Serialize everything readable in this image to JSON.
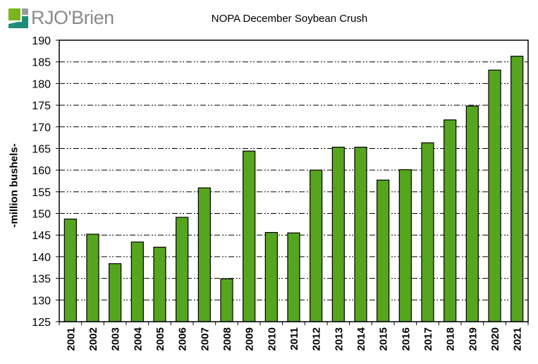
{
  "logo": {
    "text": "RJO'Brien"
  },
  "chart_data": {
    "type": "bar",
    "title": "NOPA December Soybean Crush",
    "xlabel": "",
    "ylabel": "-million bushels-",
    "ylim": [
      125,
      190
    ],
    "ytick_step": 5,
    "yticks": [
      125,
      130,
      135,
      140,
      145,
      150,
      155,
      160,
      165,
      170,
      175,
      180,
      185,
      190
    ],
    "grid": "horizontal-dashed",
    "categories": [
      "2001",
      "2002",
      "2003",
      "2004",
      "2005",
      "2006",
      "2007",
      "2008",
      "2009",
      "2010",
      "2011",
      "2012",
      "2013",
      "2014",
      "2015",
      "2016",
      "2017",
      "2018",
      "2019",
      "2020",
      "2021"
    ],
    "values": [
      148.7,
      145.2,
      138.4,
      143.4,
      142.2,
      149.1,
      155.9,
      134.9,
      164.4,
      145.6,
      145.5,
      160.0,
      165.3,
      165.3,
      157.7,
      160.1,
      166.3,
      171.6,
      174.8,
      183.1,
      186.3
    ],
    "bar_color": "#56a51f",
    "bar_edge_color": "#000000"
  }
}
